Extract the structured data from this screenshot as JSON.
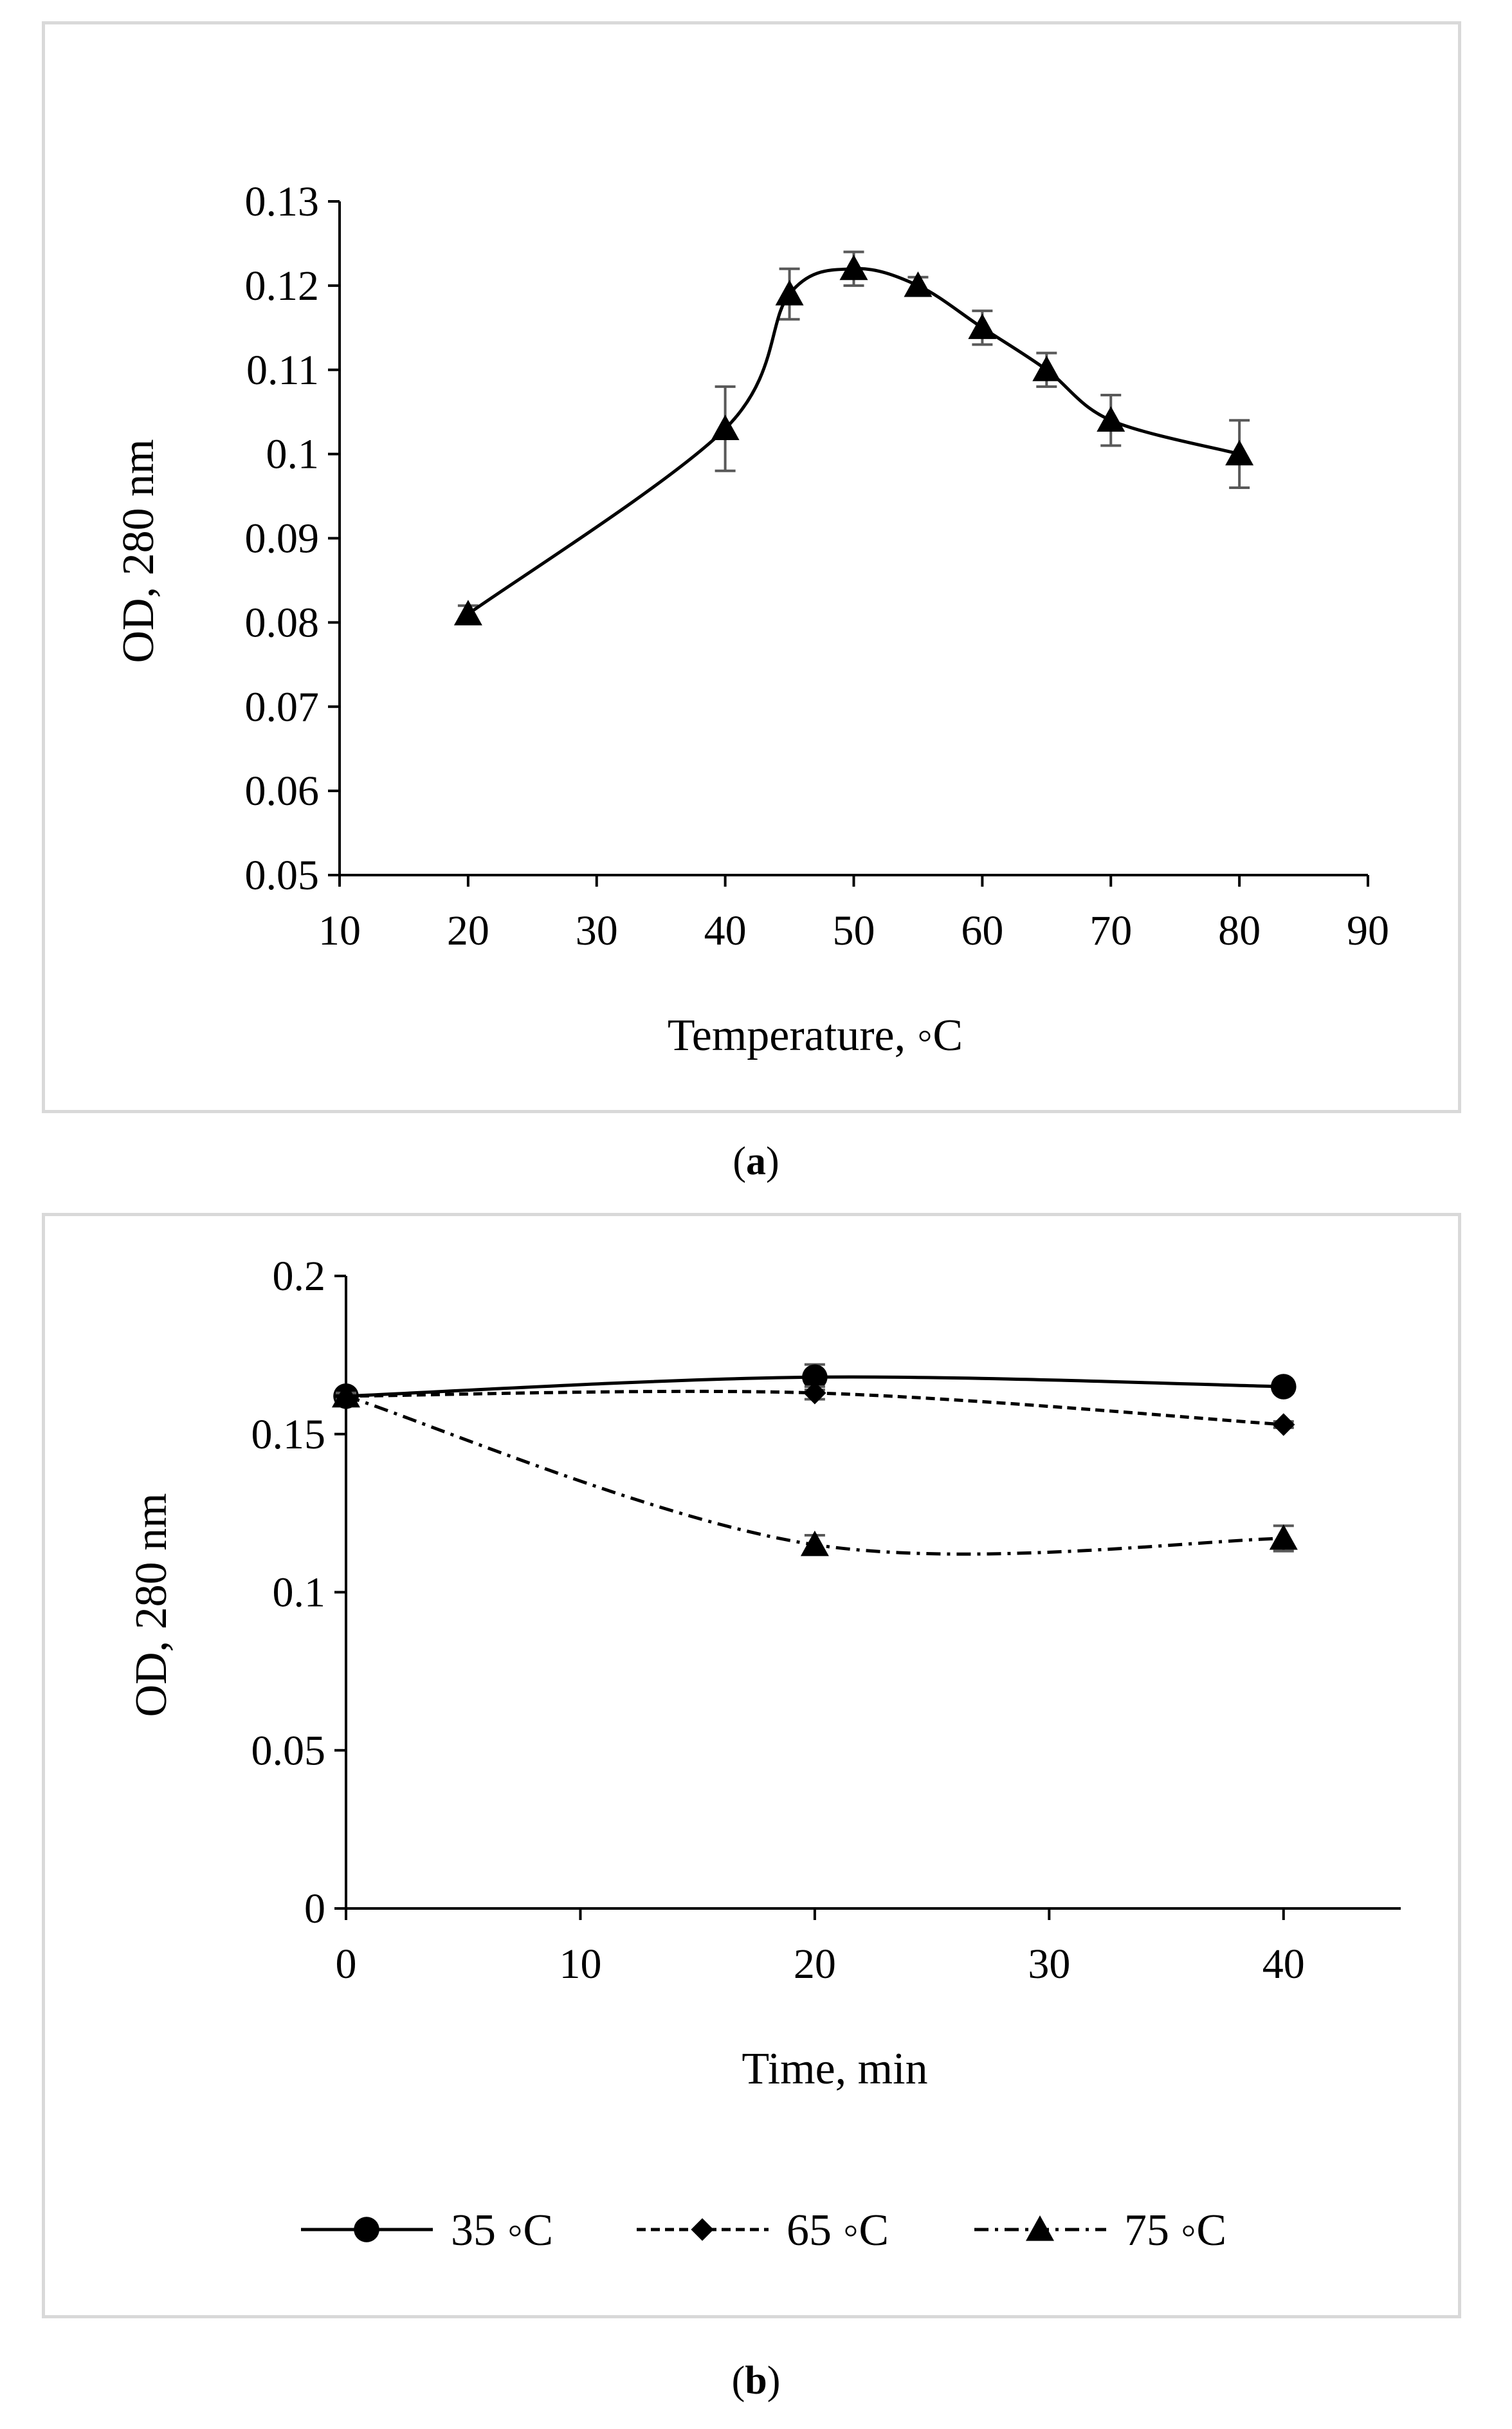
{
  "chart_data": [
    {
      "id": "a",
      "type": "line",
      "caption_letter": "a",
      "xlabel": "Temperature, ◦C",
      "ylabel": "OD, 280 nm",
      "xlim": [
        10,
        90
      ],
      "ylim": [
        0.05,
        0.13
      ],
      "x_ticks": [
        10,
        20,
        30,
        40,
        50,
        60,
        70,
        80,
        90
      ],
      "y_ticks": [
        0.05,
        0.06,
        0.07,
        0.08,
        0.09,
        0.1,
        0.11,
        0.12,
        0.13
      ],
      "x_tick_labels": [
        "10",
        "20",
        "30",
        "40",
        "50",
        "60",
        "70",
        "80",
        "90"
      ],
      "y_tick_labels": [
        "0.05",
        "0.06",
        "0.07",
        "0.08",
        "0.09",
        "0.1",
        "0.11",
        "0.12",
        "0.13"
      ],
      "series": [
        {
          "name": "OD",
          "marker": "triangle",
          "line": "solid",
          "x": [
            20,
            40,
            45,
            50,
            55,
            60,
            65,
            70,
            80
          ],
          "y": [
            0.081,
            0.103,
            0.119,
            0.122,
            0.12,
            0.115,
            0.11,
            0.104,
            0.1
          ],
          "error": [
            0.001,
            0.005,
            0.003,
            0.002,
            0.001,
            0.002,
            0.002,
            0.003,
            0.004
          ]
        }
      ]
    },
    {
      "id": "b",
      "type": "line",
      "caption_letter": "b",
      "xlabel": "Time, min",
      "ylabel": "OD, 280 nm",
      "xlim": [
        0,
        45
      ],
      "ylim": [
        0,
        0.2
      ],
      "x_ticks": [
        0,
        10,
        20,
        30,
        40
      ],
      "y_ticks": [
        0,
        0.05,
        0.1,
        0.15,
        0.2
      ],
      "x_tick_labels": [
        "0",
        "10",
        "20",
        "30",
        "40"
      ],
      "y_tick_labels": [
        "0",
        "0.05",
        "0.1",
        "0.15",
        "0.2"
      ],
      "legend_position": "bottom",
      "series": [
        {
          "name": "35 ◦C",
          "marker": "circle",
          "line": "solid",
          "x": [
            0,
            20,
            40
          ],
          "y": [
            0.162,
            0.168,
            0.165
          ],
          "error": [
            0.002,
            0.004,
            0.002
          ]
        },
        {
          "name": "65 ◦C",
          "marker": "diamond",
          "line": "dashed",
          "x": [
            0,
            20,
            40
          ],
          "y": [
            0.162,
            0.163,
            0.153
          ],
          "error": [
            0.001,
            0.002,
            0.001
          ]
        },
        {
          "name": "75 ◦C",
          "marker": "triangle",
          "line": "dashdot",
          "x": [
            0,
            20,
            40
          ],
          "y": [
            0.162,
            0.115,
            0.117
          ],
          "error": [
            0.001,
            0.003,
            0.004
          ]
        }
      ]
    }
  ]
}
